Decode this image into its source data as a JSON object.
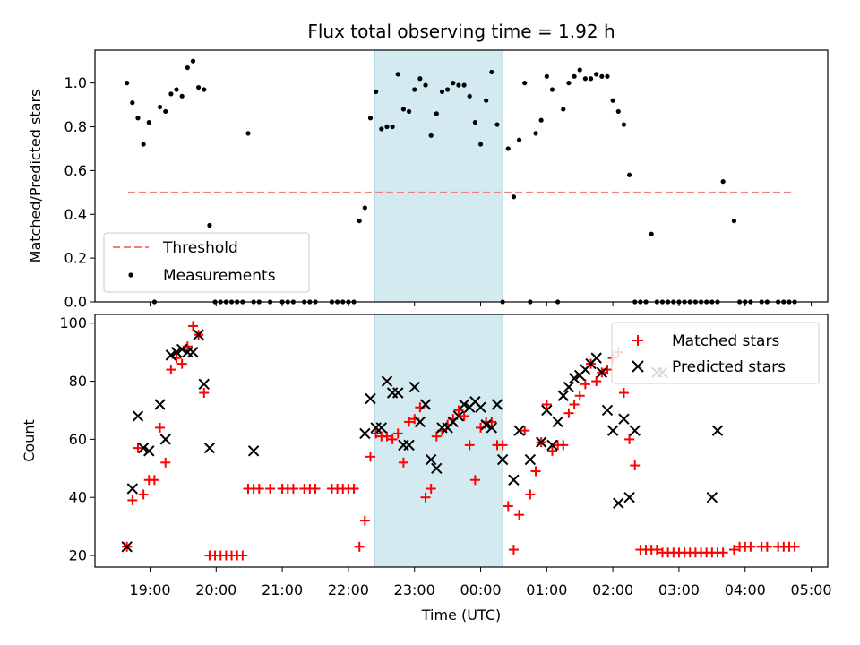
{
  "chart_data": [
    {
      "type": "scatter",
      "title": "Flux total observing time = 1.92 h",
      "ylabel": "Matched/Predicted stars",
      "xlim": [
        "18:10",
        "05:15"
      ],
      "ylim": [
        0,
        1.15
      ],
      "y_ticks": [
        "0.0",
        "0.2",
        "0.4",
        "0.6",
        "0.8",
        "1.0"
      ],
      "y_tick_values": [
        0,
        0.2,
        0.4,
        0.6,
        0.8,
        1.0
      ],
      "highlight_span": {
        "start": "22:24",
        "end": "00:20",
        "color": "#d3eaf0"
      },
      "legend": {
        "position": "lower-left",
        "entries": [
          "Threshold",
          "Measurements"
        ]
      },
      "series": [
        {
          "name": "Threshold",
          "style": "dashed-line",
          "color": "#f08080",
          "x": [
            "18:40",
            "04:42"
          ],
          "y": [
            0.5,
            0.5
          ]
        },
        {
          "name": "Measurements",
          "style": "dot",
          "color": "#000000",
          "x": [
            "18:39",
            "18:44",
            "18:49",
            "18:54",
            "18:59",
            "19:04",
            "19:09",
            "19:14",
            "19:19",
            "19:24",
            "19:29",
            "19:34",
            "19:39",
            "19:44",
            "19:49",
            "19:54",
            "19:59",
            "20:04",
            "20:09",
            "20:14",
            "20:19",
            "20:24",
            "20:29",
            "20:34",
            "20:39",
            "20:49",
            "21:00",
            "21:05",
            "21:10",
            "21:20",
            "21:25",
            "21:30",
            "21:45",
            "21:50",
            "21:55",
            "22:00",
            "22:05",
            "22:10",
            "22:15",
            "22:20",
            "22:25",
            "22:30",
            "22:35",
            "22:40",
            "22:45",
            "22:50",
            "22:55",
            "23:00",
            "23:05",
            "23:10",
            "23:15",
            "23:20",
            "23:25",
            "23:30",
            "23:35",
            "23:40",
            "23:45",
            "23:50",
            "23:55",
            "00:00",
            "00:05",
            "00:10",
            "00:15",
            "00:20",
            "00:25",
            "00:30",
            "00:35",
            "00:40",
            "00:45",
            "00:50",
            "00:55",
            "01:00",
            "01:05",
            "01:10",
            "01:15",
            "01:20",
            "01:25",
            "01:30",
            "01:35",
            "01:40",
            "01:45",
            "01:50",
            "01:55",
            "02:00",
            "02:05",
            "02:10",
            "02:15",
            "02:20",
            "02:25",
            "02:30",
            "02:35",
            "02:40",
            "02:45",
            "02:50",
            "02:55",
            "03:00",
            "03:05",
            "03:10",
            "03:15",
            "03:20",
            "03:25",
            "03:30",
            "03:35",
            "03:40",
            "03:50",
            "03:55",
            "04:00",
            "04:05",
            "04:15",
            "04:20",
            "04:30",
            "04:35",
            "04:40",
            "04:45"
          ],
          "y": [
            1.0,
            0.91,
            0.84,
            0.72,
            0.82,
            0.0,
            0.89,
            0.87,
            0.95,
            0.97,
            0.94,
            1.07,
            1.1,
            0.98,
            0.97,
            0.35,
            0.0,
            0.0,
            0.0,
            0.0,
            0.0,
            0.0,
            0.77,
            0.0,
            0.0,
            0.0,
            0.0,
            0.0,
            0.0,
            0.0,
            0.0,
            0.0,
            0.0,
            0.0,
            0.0,
            0.0,
            0.0,
            0.37,
            0.43,
            0.84,
            0.96,
            0.79,
            0.8,
            0.8,
            1.04,
            0.88,
            0.87,
            0.97,
            1.02,
            0.99,
            0.76,
            0.86,
            0.96,
            0.97,
            1.0,
            0.99,
            0.99,
            0.94,
            0.82,
            0.72,
            0.92,
            1.05,
            0.81,
            0.0,
            0.7,
            0.48,
            0.74,
            1.0,
            0.0,
            0.77,
            0.83,
            1.03,
            0.97,
            0.0,
            0.88,
            1.0,
            1.03,
            1.06,
            1.02,
            1.02,
            1.04,
            1.03,
            1.03,
            0.92,
            0.87,
            0.81,
            0.58,
            0.0,
            0.0,
            0.0,
            0.31,
            0.0,
            0.0,
            0.0,
            0.0,
            0.0,
            0.0,
            0.0,
            0.0,
            0.0,
            0.0,
            0.0,
            0.0,
            0.55,
            0.37,
            0.0,
            0.0,
            0.0,
            0.0,
            0.0,
            0.0,
            0.0,
            0.0,
            0.0
          ]
        }
      ]
    },
    {
      "type": "scatter",
      "xlabel": "Time (UTC)",
      "ylabel": "Count",
      "xlim": [
        "18:10",
        "05:15"
      ],
      "ylim": [
        16,
        103
      ],
      "x_ticks": [
        "19:00",
        "20:00",
        "21:00",
        "22:00",
        "23:00",
        "00:00",
        "01:00",
        "02:00",
        "03:00",
        "04:00",
        "05:00"
      ],
      "y_ticks": [
        "20",
        "40",
        "60",
        "80",
        "100"
      ],
      "y_tick_values": [
        20,
        40,
        60,
        80,
        100
      ],
      "highlight_span": {
        "start": "22:24",
        "end": "00:20",
        "color": "#d3eaf0"
      },
      "legend": {
        "position": "upper-right",
        "entries": [
          "Matched stars",
          "Predicted stars"
        ]
      },
      "series": [
        {
          "name": "Matched stars",
          "marker": "plus",
          "color": "#ff0000",
          "x": [
            "18:39",
            "18:44",
            "18:49",
            "18:54",
            "18:59",
            "19:04",
            "19:09",
            "19:14",
            "19:19",
            "19:24",
            "19:29",
            "19:34",
            "19:39",
            "19:44",
            "19:49",
            "19:54",
            "19:59",
            "20:04",
            "20:09",
            "20:14",
            "20:19",
            "20:24",
            "20:29",
            "20:34",
            "20:39",
            "20:49",
            "21:00",
            "21:05",
            "21:10",
            "21:20",
            "21:25",
            "21:30",
            "21:45",
            "21:50",
            "21:55",
            "22:00",
            "22:05",
            "22:10",
            "22:15",
            "22:20",
            "22:25",
            "22:30",
            "22:35",
            "22:40",
            "22:45",
            "22:50",
            "22:55",
            "23:00",
            "23:05",
            "23:10",
            "23:15",
            "23:20",
            "23:25",
            "23:30",
            "23:35",
            "23:40",
            "23:45",
            "23:50",
            "23:55",
            "00:00",
            "00:05",
            "00:10",
            "00:15",
            "00:20",
            "00:25",
            "00:30",
            "00:35",
            "00:40",
            "00:45",
            "00:50",
            "00:55",
            "01:00",
            "01:05",
            "01:10",
            "01:15",
            "01:20",
            "01:25",
            "01:30",
            "01:35",
            "01:40",
            "01:45",
            "01:50",
            "01:55",
            "02:00",
            "02:05",
            "02:10",
            "02:15",
            "02:20",
            "02:25",
            "02:30",
            "02:35",
            "02:40",
            "02:45",
            "02:50",
            "02:55",
            "03:00",
            "03:05",
            "03:10",
            "03:15",
            "03:20",
            "03:25",
            "03:30",
            "03:35",
            "03:40",
            "03:50",
            "03:55",
            "04:00",
            "04:05",
            "04:15",
            "04:20",
            "04:30",
            "04:35",
            "04:40",
            "04:45"
          ],
          "y": [
            23,
            39,
            57,
            41,
            46,
            46,
            64,
            52,
            84,
            88,
            86,
            92,
            99,
            96,
            76,
            20,
            20,
            20,
            20,
            20,
            20,
            20,
            43,
            43,
            43,
            43,
            43,
            43,
            43,
            43,
            43,
            43,
            43,
            43,
            43,
            43,
            43,
            23,
            32,
            54,
            62,
            61,
            61,
            60,
            62,
            52,
            66,
            67,
            71,
            40,
            43,
            61,
            63,
            65,
            67,
            70,
            68,
            58,
            46,
            64,
            66,
            66,
            58,
            58,
            37,
            22,
            34,
            63,
            41,
            49,
            59,
            72,
            56,
            58,
            58,
            69,
            72,
            75,
            79,
            86,
            80,
            83,
            84,
            88,
            90,
            76,
            60,
            51,
            22,
            22,
            22,
            22,
            21,
            21,
            21,
            21,
            21,
            21,
            21,
            21,
            21,
            21,
            21,
            21,
            22,
            23,
            23,
            23,
            23,
            23,
            23,
            23,
            23,
            23
          ]
        },
        {
          "name": "Predicted stars",
          "marker": "x",
          "color": "#000000",
          "x": [
            "18:39",
            "18:44",
            "18:49",
            "18:54",
            "18:59",
            "19:09",
            "19:14",
            "19:19",
            "19:24",
            "19:29",
            "19:34",
            "19:39",
            "19:44",
            "19:49",
            "19:54",
            "20:34",
            "22:15",
            "22:20",
            "22:25",
            "22:30",
            "22:35",
            "22:40",
            "22:45",
            "22:50",
            "22:55",
            "23:00",
            "23:05",
            "23:10",
            "23:15",
            "23:20",
            "23:25",
            "23:30",
            "23:35",
            "23:40",
            "23:45",
            "23:50",
            "23:55",
            "00:00",
            "00:05",
            "00:10",
            "00:15",
            "00:20",
            "00:30",
            "00:35",
            "00:45",
            "00:55",
            "01:00",
            "01:05",
            "01:10",
            "01:15",
            "01:20",
            "01:25",
            "01:30",
            "01:35",
            "01:40",
            "01:45",
            "01:50",
            "01:55",
            "02:00",
            "02:05",
            "02:10",
            "02:15",
            "02:20",
            "02:40",
            "02:45",
            "03:30",
            "03:35"
          ],
          "y": [
            23,
            43,
            68,
            57,
            56,
            72,
            60,
            89,
            90,
            91,
            90,
            90,
            96,
            79,
            57,
            56,
            62,
            74,
            64,
            64,
            80,
            76,
            76,
            58,
            58,
            78,
            66,
            72,
            53,
            50,
            64,
            64,
            66,
            68,
            72,
            71,
            73,
            71,
            65,
            64,
            72,
            53,
            46,
            63,
            53,
            59,
            70,
            58,
            66,
            75,
            78,
            81,
            82,
            84,
            86,
            88,
            83,
            70,
            63,
            38,
            67,
            40,
            63,
            83,
            83,
            40,
            63
          ]
        }
      ]
    }
  ]
}
